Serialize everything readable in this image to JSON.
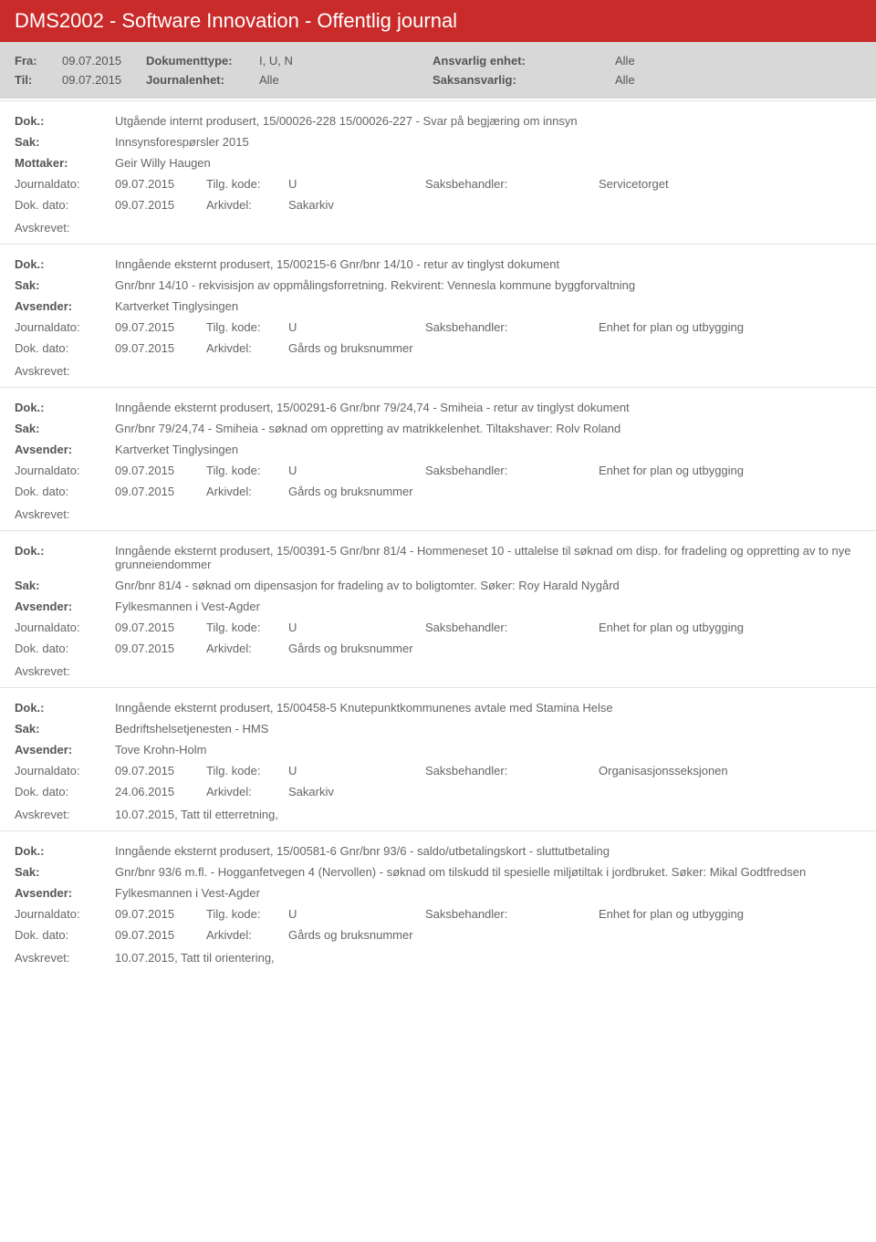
{
  "header": {
    "title": "DMS2002 - Software Innovation - Offentlig journal"
  },
  "filter": {
    "fra_label": "Fra:",
    "fra_value": "09.07.2015",
    "til_label": "Til:",
    "til_value": "09.07.2015",
    "dokumenttype_label": "Dokumenttype:",
    "dokumenttype_value": "I, U, N",
    "journalenhet_label": "Journalenhet:",
    "journalenhet_value": "Alle",
    "ansvarlig_label": "Ansvarlig enhet:",
    "ansvarlig_value": "Alle",
    "saksansvarlig_label": "Saksansvarlig:",
    "saksansvarlig_value": "Alle"
  },
  "labels": {
    "dok": "Dok.:",
    "sak": "Sak:",
    "mottaker": "Mottaker:",
    "avsender": "Avsender:",
    "journaldato": "Journaldato:",
    "dokdato": "Dok. dato:",
    "tilgkode": "Tilg. kode:",
    "arkivdel": "Arkivdel:",
    "saksbehandler": "Saksbehandler:",
    "avskrevet": "Avskrevet:"
  },
  "entries": [
    {
      "dok": "Utgående internt produsert, 15/00026-228 15/00026-227 - Svar på begjæring om innsyn",
      "sak": "Innsynsforespørsler 2015",
      "party_label": "Mottaker:",
      "party_value": "Geir Willy Haugen",
      "journaldato": "09.07.2015",
      "tilgkode": "U",
      "saksbehandler": "Servicetorget",
      "dokdato": "09.07.2015",
      "arkivdel": "Sakarkiv",
      "avskrevet": ""
    },
    {
      "dok": "Inngående eksternt produsert, 15/00215-6 Gnr/bnr 14/10 - retur av tinglyst dokument",
      "sak": "Gnr/bnr 14/10 - rekvisisjon av oppmålingsforretning. Rekvirent: Vennesla kommune byggforvaltning",
      "party_label": "Avsender:",
      "party_value": "Kartverket Tinglysingen",
      "journaldato": "09.07.2015",
      "tilgkode": "U",
      "saksbehandler": "Enhet for plan og utbygging",
      "dokdato": "09.07.2015",
      "arkivdel": "Gårds og bruksnummer",
      "avskrevet": ""
    },
    {
      "dok": "Inngående eksternt produsert, 15/00291-6 Gnr/bnr 79/24,74 - Smiheia - retur av tinglyst dokument",
      "sak": "Gnr/bnr 79/24,74 - Smiheia - søknad om oppretting av matrikkelenhet. Tiltakshaver: Rolv Roland",
      "party_label": "Avsender:",
      "party_value": "Kartverket Tinglysingen",
      "journaldato": "09.07.2015",
      "tilgkode": "U",
      "saksbehandler": "Enhet for plan og utbygging",
      "dokdato": "09.07.2015",
      "arkivdel": "Gårds og bruksnummer",
      "avskrevet": ""
    },
    {
      "dok": "Inngående eksternt produsert, 15/00391-5 Gnr/bnr 81/4 - Hommeneset 10 - uttalelse til søknad om disp. for fradeling og oppretting av to nye grunneiendommer",
      "sak": "Gnr/bnr 81/4 - søknad om dipensasjon for fradeling av to boligtomter. Søker: Roy Harald Nygård",
      "party_label": "Avsender:",
      "party_value": "Fylkesmannen i Vest-Agder",
      "journaldato": "09.07.2015",
      "tilgkode": "U",
      "saksbehandler": "Enhet for plan og utbygging",
      "dokdato": "09.07.2015",
      "arkivdel": "Gårds og bruksnummer",
      "avskrevet": ""
    },
    {
      "dok": "Inngående eksternt produsert, 15/00458-5 Knutepunktkommunenes avtale med Stamina Helse",
      "sak": "Bedriftshelsetjenesten - HMS",
      "party_label": "Avsender:",
      "party_value": "Tove Krohn-Holm",
      "journaldato": "09.07.2015",
      "tilgkode": "U",
      "saksbehandler": "Organisasjonsseksjonen",
      "dokdato": "24.06.2015",
      "arkivdel": "Sakarkiv",
      "avskrevet": "10.07.2015, Tatt til etterretning,"
    },
    {
      "dok": "Inngående eksternt produsert, 15/00581-6 Gnr/bnr 93/6 - saldo/utbetalingskort - sluttutbetaling",
      "sak": "Gnr/bnr 93/6 m.fl. - Hogganfetvegen 4 (Nervollen) - søknad om tilskudd til spesielle miljøtiltak i jordbruket. Søker: Mikal Godtfredsen",
      "party_label": "Avsender:",
      "party_value": "Fylkesmannen i Vest-Agder",
      "journaldato": "09.07.2015",
      "tilgkode": "U",
      "saksbehandler": "Enhet for plan og utbygging",
      "dokdato": "09.07.2015",
      "arkivdel": "Gårds og bruksnummer",
      "avskrevet": "10.07.2015, Tatt til orientering,"
    }
  ]
}
